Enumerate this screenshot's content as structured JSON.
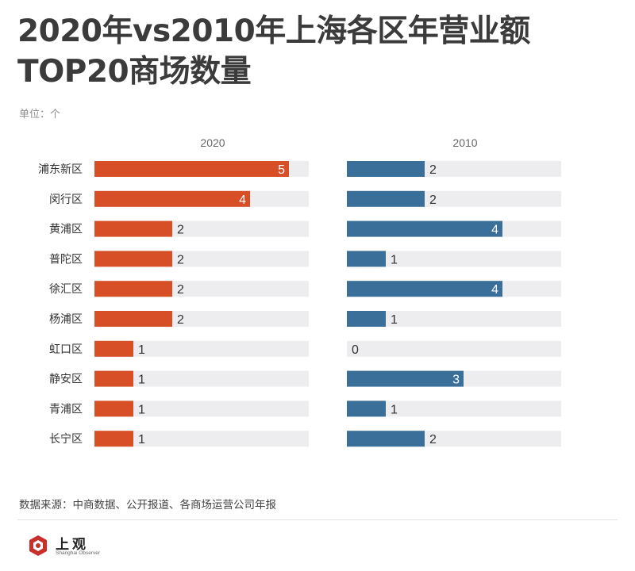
{
  "title": "2020年vs2010年上海各区年营业额TOP20商场数量",
  "unit_label": "单位：个",
  "source": "数据来源：中商数据、公开报道、各商场运营公司年报",
  "logo": {
    "name_cn": "上观",
    "name_en": "Shanghai Observer"
  },
  "colors": {
    "series_2020": "#d64f27",
    "series_2010": "#3a6f9a",
    "track": "#ededef",
    "label_inside": "#ffffff",
    "label_outside": "#333333"
  },
  "chart_data": {
    "type": "bar",
    "orientation": "horizontal",
    "categories": [
      "浦东新区",
      "闵行区",
      "黄浦区",
      "普陀区",
      "徐汇区",
      "杨浦区",
      "虹口区",
      "静安区",
      "青浦区",
      "长宁区"
    ],
    "xlim": [
      0,
      5.5
    ],
    "series": [
      {
        "name": "2020",
        "values": [
          5,
          4,
          2,
          2,
          2,
          2,
          1,
          1,
          1,
          1
        ]
      },
      {
        "name": "2010",
        "values": [
          2,
          2,
          4,
          1,
          4,
          1,
          0,
          3,
          1,
          2
        ]
      }
    ],
    "unit": "个"
  }
}
